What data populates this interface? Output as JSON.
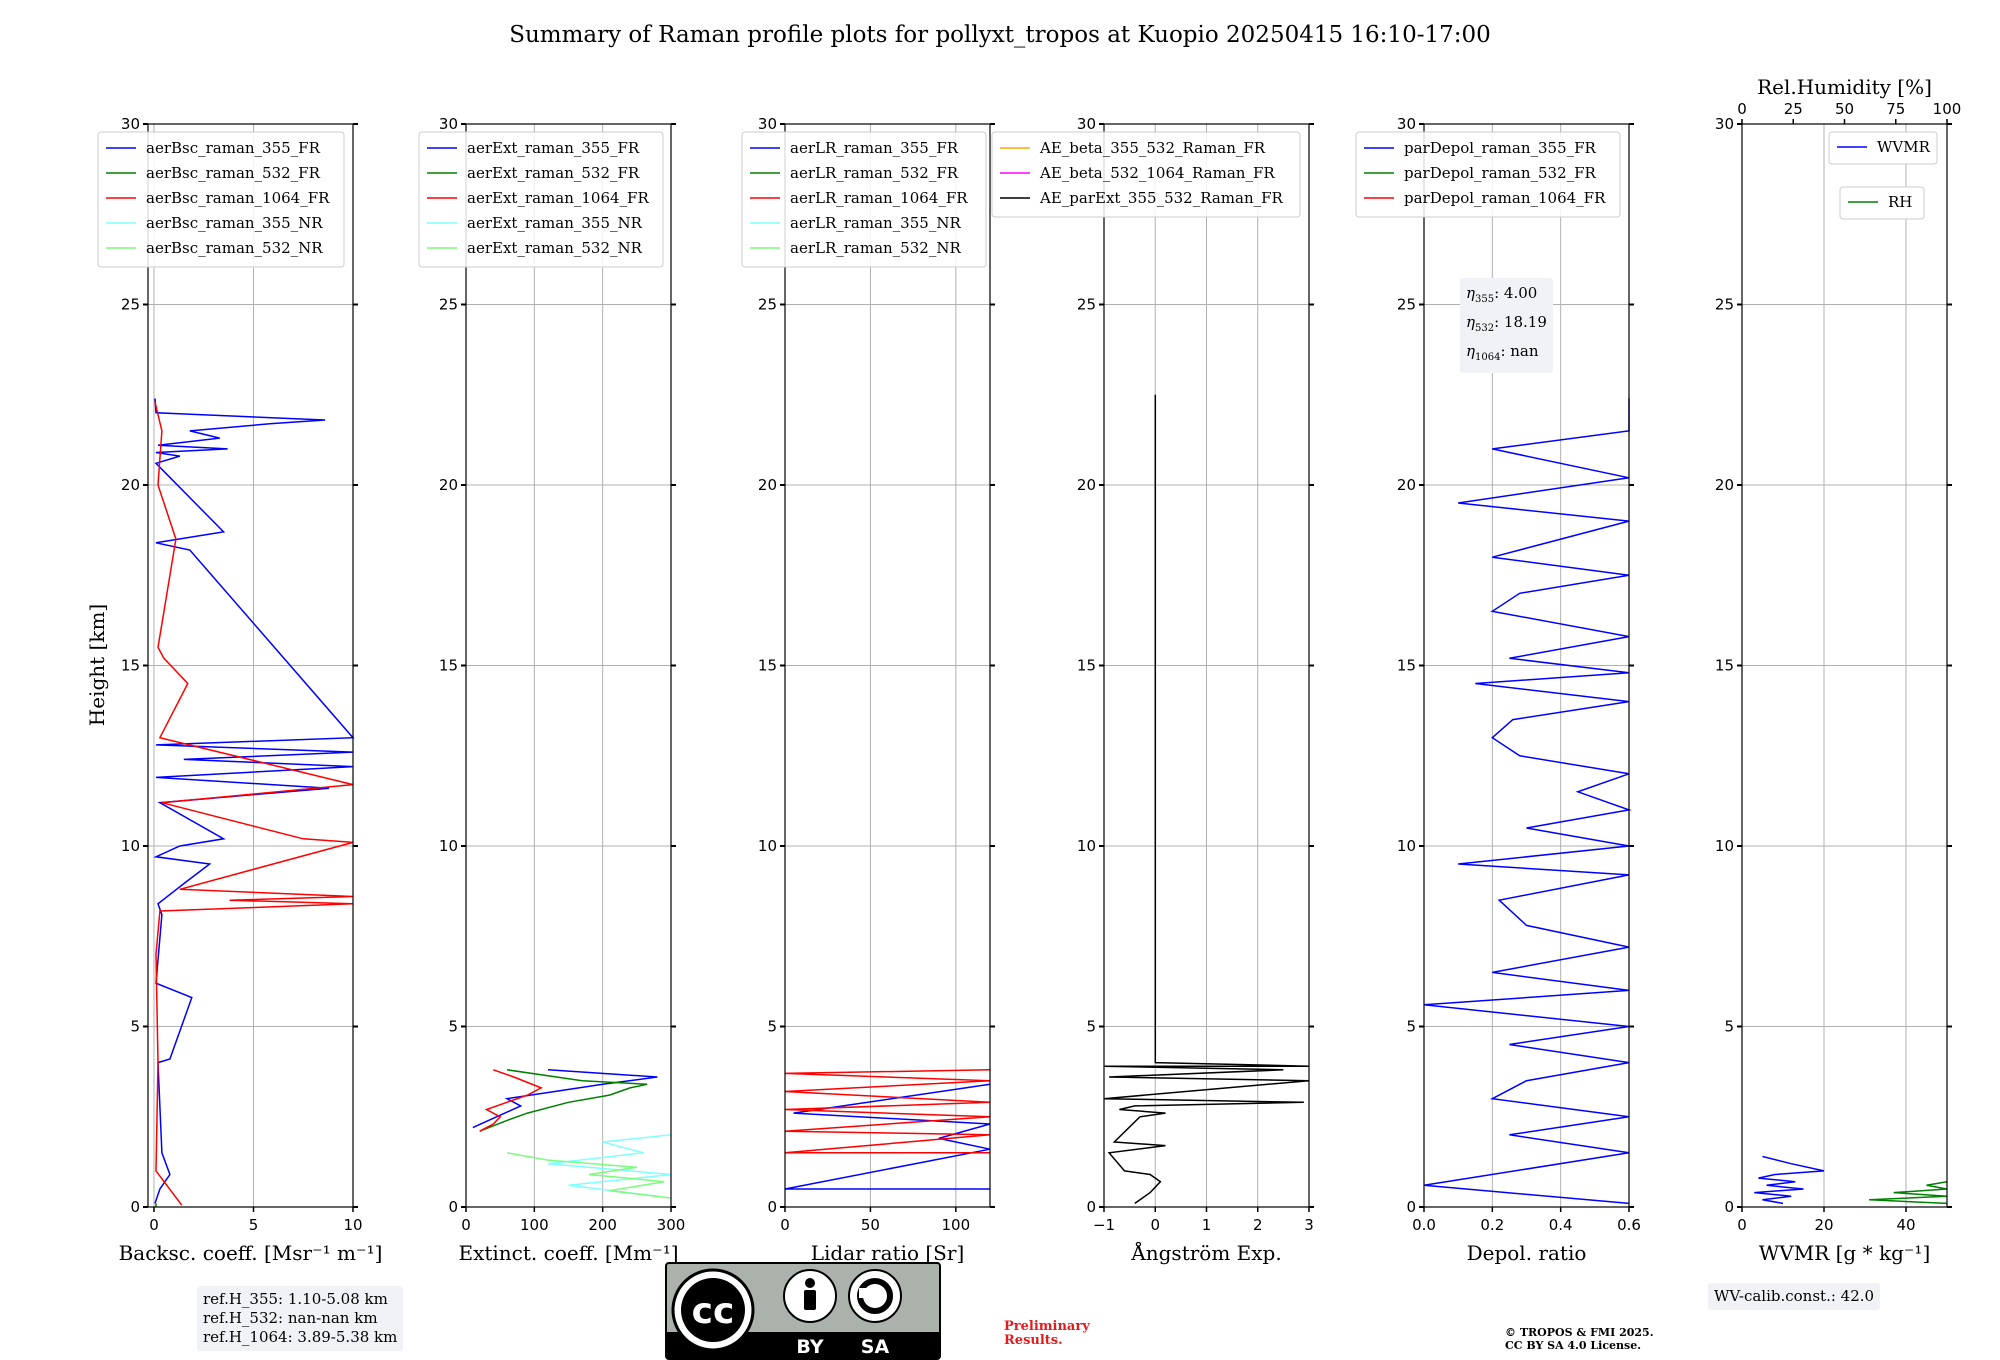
{
  "title": "Summary of Raman profile plots for pollyxt_tropos at Kuopio 20250415 16:10-17:00",
  "shared_ylabel": "Height [km]",
  "colors": {
    "blue": "#0000ff",
    "green": "#008000",
    "red": "#ff0000",
    "cyan": "#7fffff",
    "lightgreen": "#7cfc7c",
    "orange": "#ffa500",
    "magenta": "#ff00ff",
    "black": "#000000"
  },
  "chart_data": [
    {
      "type": "line",
      "id": "backscatter",
      "xlabel": "Backsc. coeff. [Msr⁻¹ m⁻¹]",
      "xlim": [
        -0.3,
        10
      ],
      "ylim": [
        0,
        30
      ],
      "xticks": [
        0,
        5,
        10
      ],
      "yticks": [
        0,
        5,
        10,
        15,
        20,
        25,
        30
      ],
      "grid": true,
      "legend": "top-left",
      "series": [
        {
          "name": "aerBsc_raman_355_FR",
          "color": "#0000ff",
          "x": [
            0.05,
            0.3,
            0.8,
            0.4,
            0.2,
            0.8,
            1.9,
            0.1,
            0.4,
            0.2,
            1.6,
            2.8,
            0.1,
            1.3,
            3.5,
            0.3,
            8.8,
            0.1,
            10,
            1.5,
            10,
            0.1,
            10,
            1.8,
            0.1,
            3.5,
            0.1,
            1.3,
            0.1,
            3.7,
            0.2,
            3.3,
            1.8,
            5.9,
            8.6,
            0.1,
            0.05
          ],
          "y": [
            0.1,
            0.5,
            0.9,
            1.5,
            4.0,
            4.1,
            5.8,
            6.2,
            8.1,
            8.4,
            9.0,
            9.5,
            9.7,
            10.0,
            10.2,
            11.2,
            11.6,
            11.9,
            12.2,
            12.4,
            12.6,
            12.8,
            13.0,
            18.2,
            18.4,
            18.7,
            20.6,
            20.8,
            20.9,
            21.0,
            21.1,
            21.3,
            21.5,
            21.7,
            21.8,
            22.0,
            22.4
          ]
        },
        {
          "name": "aerBsc_raman_532_FR",
          "color": "#008000",
          "x": [
            0.1,
            0.1
          ],
          "y": [
            0,
            0.1
          ]
        },
        {
          "name": "aerBsc_raman_1064_FR",
          "color": "#ff0000",
          "x": [
            1.4,
            0.1,
            0.2,
            0.1,
            0.3,
            10,
            3.8,
            10,
            1.3,
            10,
            7.5,
            0.4,
            10,
            0.3,
            1.7,
            0.5,
            0.2,
            1.1,
            0.2,
            0.4,
            0.05
          ],
          "y": [
            0.05,
            1.0,
            4.0,
            7.0,
            8.2,
            8.4,
            8.5,
            8.6,
            8.8,
            10.1,
            10.2,
            11.2,
            11.7,
            13.0,
            14.5,
            15.2,
            15.5,
            18.5,
            20.0,
            21.5,
            22.3
          ]
        },
        {
          "name": "aerBsc_raman_355_NR",
          "color": "#7fffff",
          "x": [
            0,
            0
          ],
          "y": [
            0,
            0
          ]
        },
        {
          "name": "aerBsc_raman_532_NR",
          "color": "#7cfc7c",
          "x": [
            0,
            0
          ],
          "y": [
            0,
            0
          ]
        }
      ]
    },
    {
      "type": "line",
      "id": "extinction",
      "xlabel": "Extinct. coeff. [Mm⁻¹]",
      "xlim": [
        0,
        300
      ],
      "ylim": [
        0,
        30
      ],
      "xticks": [
        0,
        100,
        200,
        300
      ],
      "yticks": [
        0,
        5,
        10,
        15,
        20,
        25,
        30
      ],
      "grid": true,
      "legend": "top-left",
      "series": [
        {
          "name": "aerExt_raman_355_FR",
          "color": "#0000ff",
          "x": [
            10,
            80,
            60,
            130,
            200,
            280,
            120
          ],
          "y": [
            2.2,
            2.8,
            3.0,
            3.2,
            3.4,
            3.6,
            3.8
          ]
        },
        {
          "name": "aerExt_raman_532_FR",
          "color": "#008000",
          "x": [
            20,
            60,
            90,
            150,
            210,
            240,
            265,
            170,
            60
          ],
          "y": [
            2.1,
            2.4,
            2.6,
            2.9,
            3.1,
            3.3,
            3.4,
            3.5,
            3.8
          ]
        },
        {
          "name": "aerExt_raman_1064_FR",
          "color": "#ff0000",
          "x": [
            20,
            40,
            50,
            30,
            60,
            90,
            110,
            70,
            40
          ],
          "y": [
            2.1,
            2.3,
            2.5,
            2.7,
            2.9,
            3.1,
            3.3,
            3.6,
            3.8
          ]
        },
        {
          "name": "aerExt_raman_355_NR",
          "color": "#7fffff",
          "x": [
            280,
            150,
            300,
            120,
            260,
            200,
            300
          ],
          "y": [
            0.3,
            0.6,
            0.9,
            1.2,
            1.5,
            1.8,
            2.0
          ]
        },
        {
          "name": "aerExt_raman_532_NR",
          "color": "#7cfc7c",
          "x": [
            300,
            210,
            290,
            180,
            250,
            120,
            60
          ],
          "y": [
            0.25,
            0.45,
            0.7,
            0.9,
            1.1,
            1.3,
            1.5
          ]
        }
      ]
    },
    {
      "type": "line",
      "id": "lidar_ratio",
      "xlabel": "Lidar ratio [Sr]",
      "xlim": [
        0,
        120
      ],
      "ylim": [
        0,
        30
      ],
      "xticks": [
        0,
        50,
        100
      ],
      "yticks": [
        0,
        5,
        10,
        15,
        20,
        25,
        30
      ],
      "grid": true,
      "legend": "top-left",
      "series": [
        {
          "name": "aerLR_raman_355_FR",
          "color": "#0000ff",
          "x": [
            120,
            0,
            120,
            90,
            120,
            5,
            120
          ],
          "y": [
            0.5,
            0.5,
            1.6,
            1.9,
            2.3,
            2.6,
            3.4
          ]
        },
        {
          "name": "aerLR_raman_532_FR",
          "color": "#008000",
          "x": [
            0,
            0
          ],
          "y": [
            0,
            0
          ]
        },
        {
          "name": "aerLR_raman_1064_FR",
          "color": "#ff0000",
          "x": [
            120,
            0,
            120,
            0,
            120,
            0,
            120,
            0,
            120,
            0,
            120
          ],
          "y": [
            1.5,
            1.5,
            2.0,
            2.1,
            2.5,
            2.7,
            2.9,
            3.2,
            3.5,
            3.7,
            3.8
          ]
        },
        {
          "name": "aerLR_raman_355_NR",
          "color": "#7fffff",
          "x": [
            0,
            0
          ],
          "y": [
            0,
            0
          ]
        },
        {
          "name": "aerLR_raman_532_NR",
          "color": "#7cfc7c",
          "x": [
            0,
            0
          ],
          "y": [
            0,
            0
          ]
        }
      ]
    },
    {
      "type": "line",
      "id": "angstrom",
      "xlabel": "Ångström Exp.",
      "xlim": [
        -1,
        3
      ],
      "ylim": [
        0,
        30
      ],
      "xticks": [
        -1,
        0,
        1,
        2,
        3
      ],
      "yticks": [
        0,
        5,
        10,
        15,
        20,
        25,
        30
      ],
      "grid": true,
      "legend": "top",
      "series": [
        {
          "name": "AE_beta_355_532_Raman_FR",
          "color": "#ffa500",
          "x": [
            0,
            0
          ],
          "y": [
            0,
            0
          ]
        },
        {
          "name": "AE_beta_532_1064_Raman_FR",
          "color": "#ff00ff",
          "x": [
            0,
            0
          ],
          "y": [
            0,
            0
          ]
        },
        {
          "name": "AE_parExt_355_532_Raman_FR",
          "color": "#000000",
          "x": [
            -0.4,
            -0.1,
            0.1,
            -0.1,
            -0.6,
            -0.9,
            0.2,
            -0.8,
            -0.3,
            0.2,
            -0.7,
            -0.4,
            2.9,
            -1,
            3,
            -0.9,
            2.5,
            -1,
            3,
            0,
            0,
            0
          ],
          "y": [
            0.1,
            0.4,
            0.7,
            0.9,
            1.0,
            1.5,
            1.7,
            1.8,
            2.5,
            2.6,
            2.7,
            2.8,
            2.9,
            3.0,
            3.5,
            3.6,
            3.8,
            3.9,
            3.9,
            4.0,
            15.0,
            22.5
          ]
        }
      ]
    },
    {
      "type": "line",
      "id": "depolarization",
      "xlabel": "Depol. ratio",
      "xlim": [
        0,
        0.6
      ],
      "ylim": [
        0,
        30
      ],
      "xticks": [
        0.0,
        0.2,
        0.4,
        0.6
      ],
      "yticks": [
        0,
        5,
        10,
        15,
        20,
        25,
        30
      ],
      "grid": true,
      "legend": "top-left",
      "series": [
        {
          "name": "parDepol_raman_355_FR",
          "color": "#0000ff",
          "x": [
            0.6,
            0,
            0.6,
            0.25,
            0.6,
            0.2,
            0.3,
            0.6,
            0.25,
            0.6,
            0.0,
            0.6,
            0.2,
            0.6,
            0.3,
            0.22,
            0.6,
            0.1,
            0.6,
            0.3,
            0.6,
            0.45,
            0.6,
            0.28,
            0.2,
            0.26,
            0.6,
            0.15,
            0.6,
            0.25,
            0.6,
            0.2,
            0.28,
            0.6,
            0.2,
            0.6,
            0.1,
            0.6,
            0.2,
            0.6,
            0.6
          ],
          "y": [
            0.1,
            0.6,
            1.5,
            2.0,
            2.5,
            3.0,
            3.5,
            4.0,
            4.5,
            5.0,
            5.6,
            6.0,
            6.5,
            7.2,
            7.8,
            8.5,
            9.2,
            9.5,
            10.0,
            10.5,
            11.0,
            11.5,
            12.0,
            12.5,
            13.0,
            13.5,
            14.0,
            14.5,
            14.8,
            15.2,
            15.8,
            16.5,
            17.0,
            17.5,
            18.0,
            19.0,
            19.5,
            20.2,
            21.0,
            21.5,
            22.4
          ]
        },
        {
          "name": "parDepol_raman_532_FR",
          "color": "#008000",
          "x": [
            0,
            0
          ],
          "y": [
            0,
            0
          ]
        },
        {
          "name": "parDepol_raman_1064_FR",
          "color": "#ff0000",
          "x": [
            0,
            0
          ],
          "y": [
            0,
            0
          ]
        }
      ]
    },
    {
      "type": "line",
      "id": "water_vapor",
      "xlabel": "WVMR [g * kg⁻¹]",
      "xlim": [
        0,
        50
      ],
      "ylim": [
        0,
        30
      ],
      "xticks": [
        0,
        20,
        40
      ],
      "yticks": [
        0,
        5,
        10,
        15,
        20,
        25,
        30
      ],
      "grid": true,
      "legend": "top-right",
      "top_xlabel": "Rel.Humidity [%]",
      "top_xlim": [
        0,
        100
      ],
      "top_xticks": [
        0,
        25,
        50,
        75,
        100
      ],
      "series": [
        {
          "name": "WVMR",
          "color": "#0000ff",
          "x": [
            10,
            5,
            12,
            3,
            15,
            6,
            13,
            4,
            8,
            20,
            12,
            5
          ],
          "y": [
            0.1,
            0.2,
            0.3,
            0.4,
            0.5,
            0.6,
            0.7,
            0.8,
            0.9,
            1.0,
            1.2,
            1.4
          ]
        },
        {
          "name": "RH",
          "color": "#008000",
          "x": [
            100,
            62,
            100,
            74,
            100,
            90,
            100
          ],
          "y": [
            0.1,
            0.2,
            0.3,
            0.4,
            0.5,
            0.6,
            0.7
          ],
          "axis": "top"
        }
      ]
    }
  ],
  "depol_annotation": [
    {
      "symbol": "η",
      "sub": "355",
      "value": ": 4.00"
    },
    {
      "symbol": "η",
      "sub": "532",
      "value": ": 18.19"
    },
    {
      "symbol": "η",
      "sub": "1064",
      "value": ": nan"
    }
  ],
  "ref_heights": [
    "ref.H_355: 1.10-5.08 km",
    "ref.H_532: nan-nan km",
    "ref.H_1064: 3.89-5.38 km"
  ],
  "wv_calib": "WV-calib.const.: 42.0",
  "license_badge": {
    "cc": "cc",
    "by": "BY",
    "sa": "SA"
  },
  "preliminary": [
    "Preliminary",
    "Results."
  ],
  "copyright": [
    "© TROPOS & FMI 2025.",
    "CC BY SA 4.0 License."
  ]
}
